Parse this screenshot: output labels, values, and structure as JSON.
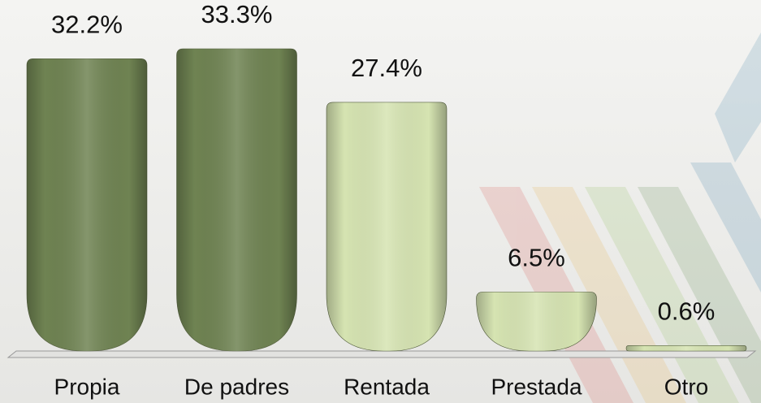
{
  "chart_data": {
    "type": "bar",
    "categories": [
      "Propia",
      "De padres",
      "Rentada",
      "Prestada",
      "Otro"
    ],
    "values": [
      32.2,
      33.3,
      27.4,
      6.5,
      0.6
    ],
    "value_labels": [
      "32.2%",
      "33.3%",
      "27.4%",
      "6.5%",
      "0.6%"
    ],
    "colors": [
      "#6f8352",
      "#6f8352",
      "#d6e4b2",
      "#d6e4b2",
      "#d6e4b2"
    ]
  }
}
